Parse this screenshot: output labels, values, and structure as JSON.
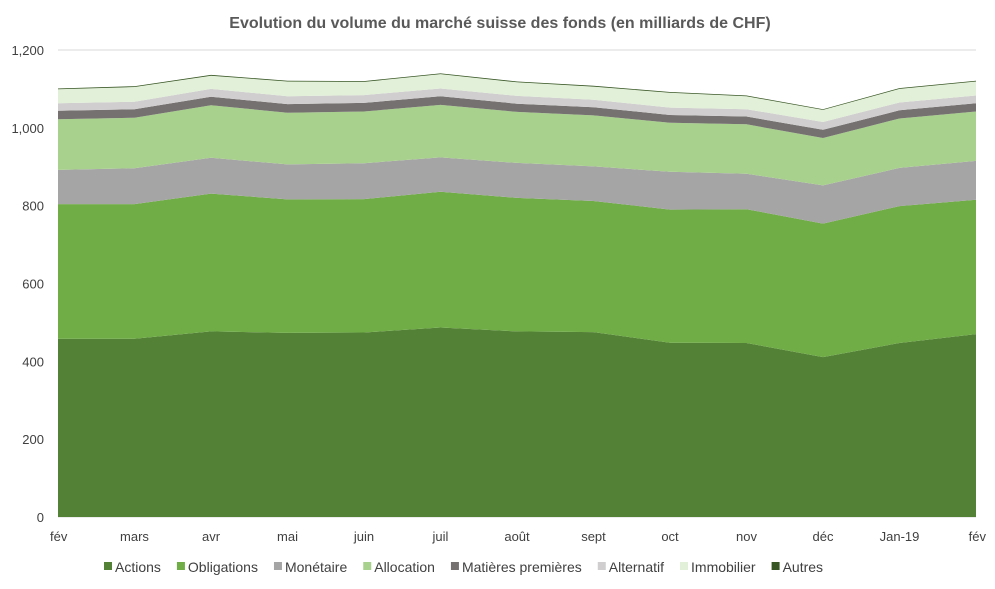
{
  "chart_data": {
    "type": "area",
    "stacked": true,
    "title": "Evolution du volume du marché suisse des fonds (en milliards de CHF)",
    "xlabel": "",
    "ylabel": "",
    "categories": [
      "fév",
      "mars",
      "avr",
      "mai",
      "juin",
      "juil",
      "août",
      "sept",
      "oct",
      "nov",
      "déc",
      "Jan-19",
      "fév"
    ],
    "ylim": [
      0,
      1200
    ],
    "yticks": [
      0,
      200,
      400,
      600,
      800,
      1000,
      1200
    ],
    "ytick_labels": [
      "0",
      "200",
      "400",
      "600",
      "800",
      "1,000",
      "1,200"
    ],
    "grid": true,
    "legend_position": "bottom",
    "series": [
      {
        "name": "Actions",
        "color": "#538135",
        "values": [
          458,
          458,
          477,
          473,
          474,
          487,
          477,
          475,
          448,
          447,
          411,
          447,
          470
        ]
      },
      {
        "name": "Obligations",
        "color": "#70ad47",
        "values": [
          346,
          346,
          354,
          343,
          343,
          349,
          343,
          337,
          342,
          344,
          343,
          352,
          345
        ]
      },
      {
        "name": "Monétaire",
        "color": "#a5a5a5",
        "values": [
          88,
          92,
          92,
          90,
          92,
          88,
          90,
          89,
          97,
          91,
          98,
          98,
          100
        ]
      },
      {
        "name": "Allocation",
        "color": "#a9d18e",
        "values": [
          130,
          130,
          135,
          133,
          133,
          135,
          131,
          131,
          126,
          127,
          122,
          127,
          127
        ]
      },
      {
        "name": "Matières premières",
        "color": "#767171",
        "values": [
          22,
          22,
          22,
          22,
          22,
          22,
          21,
          21,
          20,
          20,
          21,
          21,
          21
        ]
      },
      {
        "name": "Alternatif",
        "color": "#d0cece",
        "values": [
          19,
          19,
          20,
          20,
          20,
          20,
          20,
          19,
          19,
          19,
          20,
          20,
          20
        ]
      },
      {
        "name": "Immobilier",
        "color": "#e2f0d9",
        "values": [
          36,
          38,
          34,
          38,
          34,
          37,
          35,
          34,
          38,
          33,
          31,
          35,
          36
        ]
      },
      {
        "name": "Autres",
        "color": "#375623",
        "values": [
          2,
          2,
          2,
          2,
          2,
          2,
          2,
          2,
          2,
          2,
          2,
          2,
          2
        ]
      }
    ]
  }
}
